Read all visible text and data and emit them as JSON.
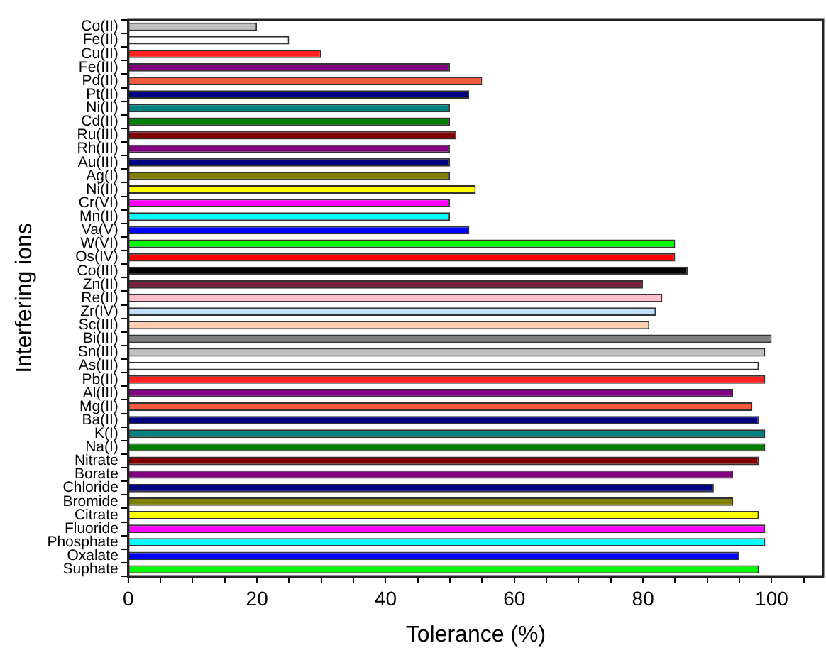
{
  "chart_data": {
    "type": "bar",
    "orientation": "horizontal",
    "xlabel": "Tolerance (%)",
    "ylabel": "Interfering ions",
    "categories": [
      "Co(II)",
      "Fe(II)",
      "Cu(II)",
      "Fe(III)",
      "Pd(II)",
      "Pt(II)",
      "Ni(II)",
      "Cd(II)",
      "Ru(III)",
      "Rh(III)",
      "Au(III)",
      "Ag(I)",
      "Ni(II)",
      "Cr(VI)",
      "Mn(II)",
      "Va(V)",
      "W(VI)",
      "Os(IV)",
      "Co(III)",
      "Zn(II)",
      "Re(II)",
      "Zr(IV)",
      "Sc(III)",
      "Bi(III)",
      "Sn(III)",
      "As(III)",
      "Pb(II)",
      "Al(III)",
      "Mg(II)",
      "Ba(II)",
      "K(I)",
      "Na(I)",
      "Nitrate",
      "Borate",
      "Chloride",
      "Bromide",
      "Citrate",
      "Fluoride",
      "Phosphate",
      "Oxalate",
      "Suphate"
    ],
    "values": [
      20,
      25,
      30,
      50,
      55,
      53,
      50,
      50,
      51,
      50,
      50,
      50,
      54,
      50,
      50,
      53,
      85,
      85,
      87,
      80,
      83,
      82,
      81,
      100,
      99,
      98,
      99,
      94,
      97,
      98,
      99,
      99,
      98,
      94,
      91,
      94,
      98,
      99,
      99,
      95,
      98
    ],
    "colors": [
      "#c0c0c0",
      "#ffffff",
      "#ff2020",
      "#800080",
      "#f05a3c",
      "#000080",
      "#008080",
      "#008000",
      "#800000",
      "#800080",
      "#000080",
      "#808000",
      "#ffff00",
      "#ff00ff",
      "#00ffff",
      "#0000ff",
      "#00ff00",
      "#ff0000",
      "#000000",
      "#7b2040",
      "#ffc0cb",
      "#c0e0ff",
      "#ffd0b0",
      "#808080",
      "#c0c0c0",
      "#ffffff",
      "#ff2020",
      "#800080",
      "#f05a3c",
      "#000080",
      "#008080",
      "#008000",
      "#800000",
      "#800080",
      "#000080",
      "#808000",
      "#ffff00",
      "#ff00ff",
      "#00ffff",
      "#0000ff",
      "#00ff00"
    ],
    "xlim": [
      0,
      108
    ],
    "xticks": [
      0,
      {
        "value": 5,
        "label": null
      },
      {
        "value": 10,
        "label": null
      },
      {
        "value": 15,
        "label": null
      },
      20,
      {
        "value": 25,
        "label": null
      },
      {
        "value": 30,
        "label": null
      },
      {
        "value": 35,
        "label": null
      },
      40,
      {
        "value": 45,
        "label": null
      },
      {
        "value": 50,
        "label": null
      },
      {
        "value": 55,
        "label": null
      },
      60,
      {
        "value": 65,
        "label": null
      },
      {
        "value": 70,
        "label": null
      },
      {
        "value": 75,
        "label": null
      },
      80,
      {
        "value": 85,
        "label": null
      },
      {
        "value": 90,
        "label": null
      },
      {
        "value": 95,
        "label": null
      },
      100,
      {
        "value": 105,
        "label": null
      }
    ],
    "grid": false,
    "legend": false
  }
}
